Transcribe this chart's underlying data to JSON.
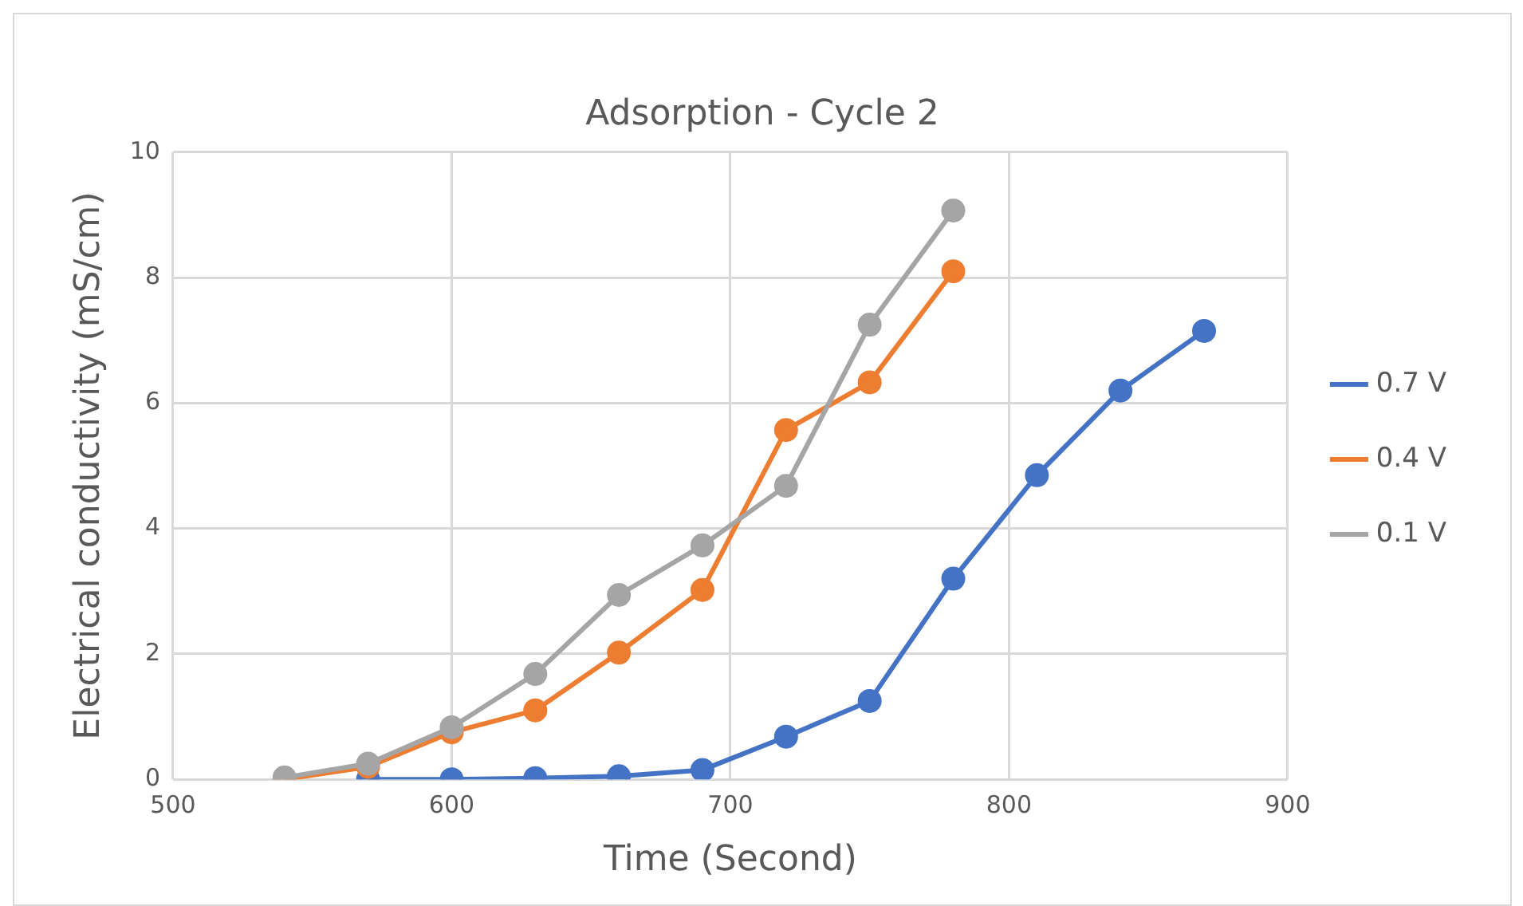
{
  "chart_data": {
    "type": "line",
    "title": "Adsorption - Cycle 2",
    "xlabel": "Time (Second)",
    "ylabel": "Electrical conductivity (mS/cm)",
    "xlim": [
      500,
      900
    ],
    "xticks": [
      500,
      600,
      700,
      800,
      900
    ],
    "ylim": [
      0,
      10
    ],
    "yticks": [
      0,
      2,
      4,
      6,
      8,
      10
    ],
    "grid": true,
    "legend": "right",
    "marker": "circle",
    "line_style": "solid",
    "series": [
      {
        "name": "0.7 V",
        "color": "#4472c4",
        "x": [
          570,
          600,
          630,
          660,
          690,
          720,
          750,
          780,
          810,
          840,
          870
        ],
        "values": [
          0,
          0,
          0.02,
          0.05,
          0.15,
          0.68,
          1.25,
          3.2,
          4.85,
          6.2,
          7.15
        ]
      },
      {
        "name": "0.4 V",
        "color": "#ed7d31",
        "x": [
          540,
          570,
          600,
          630,
          660,
          690,
          720,
          750,
          780
        ],
        "values": [
          0,
          0.2,
          0.75,
          1.1,
          2.02,
          3.02,
          5.57,
          6.33,
          8.1
        ]
      },
      {
        "name": "0.1 V",
        "color": "#a5a5a5",
        "x": [
          540,
          570,
          600,
          630,
          660,
          690,
          720,
          750,
          780
        ],
        "values": [
          0.03,
          0.25,
          0.83,
          1.68,
          2.94,
          3.73,
          4.68,
          7.25,
          9.07
        ]
      }
    ]
  }
}
